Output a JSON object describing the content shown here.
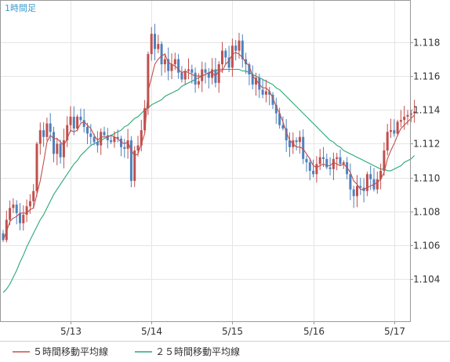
{
  "period_label": "1時間足",
  "colors": {
    "up": "#c0504d",
    "down": "#4f81bd",
    "ma5": "#c0504d",
    "ma25": "#2aa876",
    "grid": "#e5e5e5",
    "axis": "#999999"
  },
  "chart_data": {
    "type": "candlestick",
    "x_tick_labels": [
      "5/13",
      "5/14",
      "5/15",
      "5/16",
      "5/17"
    ],
    "x_tick_index": [
      20,
      44,
      68,
      92,
      116
    ],
    "ylim": [
      1.1015,
      1.1205
    ],
    "yticks": [
      1.104,
      1.106,
      1.108,
      1.11,
      1.112,
      1.114,
      1.116,
      1.118
    ],
    "ytick_labels": [
      "1.104",
      "1.106",
      "1.108",
      "1.110",
      "1.112",
      "1.114",
      "1.116",
      "1.118"
    ],
    "grid": true,
    "legend_position": "bottom",
    "legend": [
      "５時間移動平均線",
      "２５時間移動平均線"
    ],
    "close": [
      1.1063,
      1.1075,
      1.1082,
      1.1084,
      1.1079,
      1.1073,
      1.1078,
      1.1083,
      1.1086,
      1.1092,
      1.112,
      1.1128,
      1.1124,
      1.1132,
      1.1127,
      1.1114,
      1.112,
      1.1112,
      1.1122,
      1.1131,
      1.1136,
      1.1129,
      1.1136,
      1.1134,
      1.113,
      1.1126,
      1.1124,
      1.1121,
      1.1119,
      1.1127,
      1.1125,
      1.1122,
      1.1121,
      1.1124,
      1.1123,
      1.1118,
      1.1117,
      1.1122,
      1.1098,
      1.1116,
      1.1119,
      1.1128,
      1.1141,
      1.1173,
      1.1185,
      1.1176,
      1.1179,
      1.1167,
      1.117,
      1.1163,
      1.1167,
      1.117,
      1.1162,
      1.1158,
      1.1163,
      1.1164,
      1.1162,
      1.1155,
      1.1157,
      1.1164,
      1.1162,
      1.1159,
      1.1164,
      1.1156,
      1.1167,
      1.1175,
      1.1171,
      1.1165,
      1.1178,
      1.1175,
      1.1181,
      1.117,
      1.1167,
      1.1161,
      1.1155,
      1.1159,
      1.1152,
      1.1149,
      1.1151,
      1.1149,
      1.1143,
      1.1138,
      1.1131,
      1.1129,
      1.1122,
      1.1118,
      1.1122,
      1.1121,
      1.1124,
      1.1111,
      1.1109,
      1.1104,
      1.1102,
      1.1108,
      1.1112,
      1.1111,
      1.1106,
      1.1105,
      1.1111,
      1.1112,
      1.1108,
      1.1109,
      1.1102,
      1.1093,
      1.1089,
      1.1095,
      1.1094,
      1.1092,
      1.1102,
      1.1099,
      1.1093,
      1.1099,
      1.1104,
      1.1116,
      1.1127,
      1.1128,
      1.1126,
      1.1133,
      1.1134,
      1.1136,
      1.1137,
      1.1138,
      1.1139
    ],
    "ma5": [
      1.1063,
      1.1068,
      1.1074,
      1.1076,
      1.1077,
      1.1079,
      1.1079,
      1.1079,
      1.1081,
      1.1082,
      1.109,
      1.1098,
      1.1109,
      1.1121,
      1.1125,
      1.1123,
      1.1123,
      1.1121,
      1.1119,
      1.1123,
      1.1128,
      1.1127,
      1.1128,
      1.1132,
      1.1133,
      1.1131,
      1.1129,
      1.1125,
      1.1122,
      1.1124,
      1.1124,
      1.1124,
      1.1125,
      1.1124,
      1.1123,
      1.1121,
      1.112,
      1.1121,
      1.1116,
      1.1113,
      1.1114,
      1.112,
      1.1126,
      1.1151,
      1.1159,
      1.1167,
      1.117,
      1.1172,
      1.1173,
      1.1168,
      1.1167,
      1.1166,
      1.1164,
      1.1162,
      1.1163,
      1.1162,
      1.1161,
      1.116,
      1.116,
      1.116,
      1.1161,
      1.1162,
      1.1162,
      1.116,
      1.1163,
      1.1163,
      1.1167,
      1.1169,
      1.1173,
      1.1174,
      1.1173,
      1.1171,
      1.1168,
      1.1166,
      1.116,
      1.1158,
      1.1155,
      1.1153,
      1.1153,
      1.1151,
      1.1147,
      1.1142,
      1.1138,
      1.1133,
      1.1127,
      1.1122,
      1.112,
      1.1118,
      1.1118,
      1.1117,
      1.1114,
      1.1111,
      1.1107,
      1.1106,
      1.1107,
      1.1108,
      1.1107,
      1.1107,
      1.1109,
      1.1108,
      1.1107,
      1.1108,
      1.1106,
      1.1103,
      1.1098,
      1.1096,
      1.1093,
      1.1093,
      1.1094,
      1.1095,
      1.1096,
      1.1097,
      1.1099,
      1.1103,
      1.1111,
      1.1116,
      1.112,
      1.1125,
      1.1129,
      1.1131,
      1.1133,
      1.1135,
      1.1137
    ],
    "ma25": [
      1.1032,
      1.1034,
      1.1037,
      1.1041,
      1.1045,
      1.105,
      1.1054,
      1.1059,
      1.1063,
      1.1067,
      1.1071,
      1.1075,
      1.1078,
      1.1082,
      1.1086,
      1.109,
      1.1093,
      1.1096,
      1.1099,
      1.1102,
      1.1105,
      1.1108,
      1.111,
      1.1113,
      1.1115,
      1.1117,
      1.1119,
      1.112,
      1.1121,
      1.1122,
      1.1123,
      1.1124,
      1.1125,
      1.1126,
      1.1127,
      1.1128,
      1.113,
      1.1131,
      1.1133,
      1.1135,
      1.1136,
      1.1138,
      1.114,
      1.1141,
      1.1143,
      1.1144,
      1.1145,
      1.1146,
      1.1148,
      1.1149,
      1.115,
      1.1151,
      1.1152,
      1.1154,
      1.1155,
      1.1156,
      1.1157,
      1.1158,
      1.1159,
      1.116,
      1.1161,
      1.1162,
      1.1163,
      1.1163,
      1.1164,
      1.1164,
      1.1164,
      1.1164,
      1.1164,
      1.1164,
      1.1164,
      1.1163,
      1.1163,
      1.1162,
      1.1161,
      1.116,
      1.1159,
      1.1158,
      1.1157,
      1.1156,
      1.1155,
      1.1153,
      1.1152,
      1.115,
      1.1148,
      1.1146,
      1.1144,
      1.1142,
      1.114,
      1.1138,
      1.1136,
      1.1134,
      1.1132,
      1.113,
      1.1128,
      1.1126,
      1.1124,
      1.1122,
      1.1121,
      1.1119,
      1.1118,
      1.1116,
      1.1115,
      1.1114,
      1.1113,
      1.1112,
      1.1111,
      1.111,
      1.1109,
      1.1108,
      1.1107,
      1.1106,
      1.1105,
      1.1105,
      1.1104,
      1.1104,
      1.1105,
      1.1106,
      1.1107,
      1.1109,
      1.111,
      1.1111,
      1.1113
    ]
  }
}
